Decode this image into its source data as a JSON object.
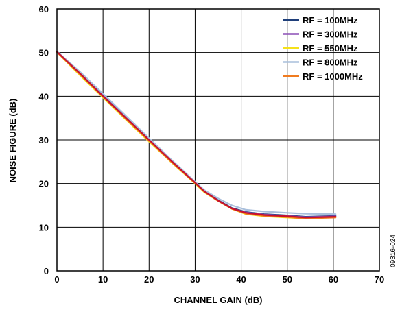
{
  "chart_data": {
    "type": "line",
    "xlabel": "CHANNEL GAIN (dB)",
    "ylabel": "NOISE FIGURE (dB)",
    "xlim": [
      0,
      70
    ],
    "ylim": [
      0,
      60
    ],
    "x_ticks": [
      0,
      10,
      20,
      30,
      40,
      50,
      60,
      70
    ],
    "y_ticks": [
      0,
      10,
      20,
      30,
      40,
      50,
      60
    ],
    "grid": true,
    "legend_position": "top-right",
    "figure_id": "09316-024",
    "series": [
      {
        "name": "RF = 100MHz",
        "color": "#1f3f7a",
        "x": [
          0,
          5,
          10,
          15,
          20,
          25,
          30,
          32,
          35,
          38,
          41,
          45,
          50,
          54,
          60.5
        ],
        "y": [
          50.2,
          45.3,
          40.2,
          35.1,
          30.1,
          25.0,
          20.3,
          18.3,
          16.2,
          14.4,
          13.5,
          13.0,
          12.7,
          12.4,
          12.6
        ]
      },
      {
        "name": "RF = 300MHz",
        "color": "#8b4fb5",
        "x": [
          0,
          5,
          10,
          15,
          20,
          25,
          30,
          32,
          35,
          38,
          41,
          45,
          50,
          54,
          60.5
        ],
        "y": [
          50.2,
          45.2,
          40.1,
          35.0,
          30.0,
          25.0,
          20.2,
          18.2,
          16.1,
          14.3,
          13.4,
          12.9,
          12.6,
          12.3,
          12.5
        ]
      },
      {
        "name": "RF = 550MHz",
        "color": "#f5e11a",
        "x": [
          0,
          5,
          10,
          15,
          20,
          25,
          30,
          32,
          35,
          38,
          41,
          45,
          50,
          54,
          60.5
        ],
        "y": [
          50.1,
          44.8,
          39.7,
          34.6,
          29.6,
          24.7,
          20.0,
          18.0,
          16.0,
          14.2,
          13.0,
          12.5,
          12.2,
          12.0,
          12.3
        ]
      },
      {
        "name": "RF = 800MHz",
        "color": "#a9bfdc",
        "x": [
          0,
          5,
          10,
          15,
          20,
          25,
          30,
          32,
          35,
          38,
          41,
          45,
          50,
          54,
          60.5
        ],
        "y": [
          50.3,
          45.6,
          40.6,
          35.5,
          30.4,
          25.3,
          20.4,
          18.5,
          16.6,
          15.0,
          14.0,
          13.6,
          13.3,
          13.1,
          13.0
        ]
      },
      {
        "name": "RF = 1000MHz",
        "color": "#f07b1f",
        "x": [
          0,
          5,
          10,
          15,
          20,
          25,
          30,
          32,
          35,
          38,
          41,
          45,
          50,
          54,
          60.5
        ],
        "y": [
          50.1,
          45.0,
          39.9,
          34.8,
          29.8,
          24.8,
          20.1,
          18.1,
          16.0,
          14.2,
          13.1,
          12.6,
          12.3,
          12.0,
          12.2
        ]
      },
      {
        "name": "",
        "color": "#c8102e",
        "x": [
          0,
          5,
          10,
          15,
          20,
          25,
          30,
          32,
          35,
          38,
          41,
          45,
          50,
          54,
          60.5
        ],
        "y": [
          50.2,
          45.2,
          40.0,
          35.0,
          30.0,
          25.0,
          20.2,
          18.2,
          16.1,
          14.3,
          13.3,
          12.8,
          12.5,
          12.2,
          12.4
        ]
      }
    ]
  }
}
